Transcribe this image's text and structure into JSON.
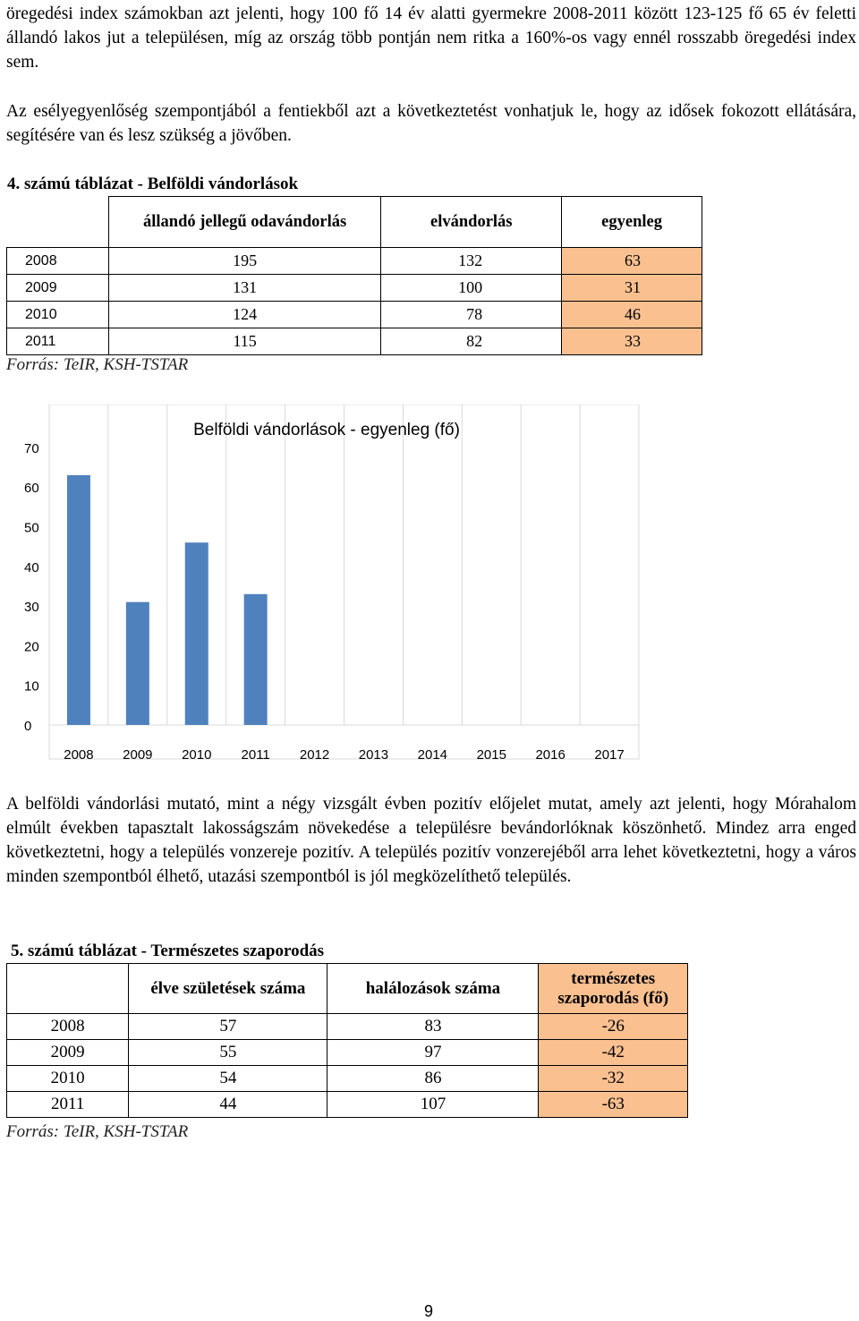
{
  "paragraphs": {
    "p1": "öregedési index számokban azt jelenti, hogy 100 fő 14 év alatti gyermekre 2008-2011 között 123-125 fő 65 év feletti állandó lakos jut a településen, míg az ország több pontján nem ritka a 160%-os vagy ennél rosszabb öregedési index sem.",
    "p2": "Az esélyegyenlőség szempontjából a fentiekből azt a következtetést vonhatjuk le, hogy az idősek fokozott ellátására, segítésére van és lesz szükség a jövőben.",
    "p3": "A belföldi vándorlási mutató, mint a négy vizsgált évben pozitív előjelet mutat, amely azt jelenti, hogy Mórahalom elmúlt években tapasztalt lakosságszám növekedése a településre bevándorlóknak köszönhető. Mindez arra enged következtetni, hogy a település vonzereje pozitív. A település pozitív vonzerejéből arra lehet következtetni, hogy a város minden szempontból élhető, utazási szempontból is jól megközelíthető település."
  },
  "table4": {
    "caption": "4. számú táblázat - Belföldi vándorlások",
    "headers": [
      "állandó jellegű odavándorlás",
      "elvándorlás",
      "egyenleg"
    ],
    "rows": [
      {
        "year": "2008",
        "in": "195",
        "out": "132",
        "balance": "63"
      },
      {
        "year": "2009",
        "in": "131",
        "out": "100",
        "balance": "31"
      },
      {
        "year": "2010",
        "in": "124",
        "out": "78",
        "balance": "46"
      },
      {
        "year": "2011",
        "in": "115",
        "out": "82",
        "balance": "33"
      }
    ],
    "source": "Forrás: TeIR, KSH-TSTAR"
  },
  "chart_data": {
    "type": "bar",
    "title": "Belföldi vándorlások - egyenleg (fő)",
    "categories": [
      "2008",
      "2009",
      "2010",
      "2011",
      "2012",
      "2013",
      "2014",
      "2015",
      "2016",
      "2017"
    ],
    "values": [
      63,
      31,
      46,
      33,
      null,
      null,
      null,
      null,
      null,
      null
    ],
    "ylim": [
      0,
      70
    ],
    "yticks": [
      "0",
      "10",
      "20",
      "30",
      "40",
      "50",
      "60",
      "70"
    ],
    "xlabel": "",
    "ylabel": "",
    "bar_color": "#4f81bd",
    "grid": true,
    "legend": "none"
  },
  "table5": {
    "caption": "5. számú táblázat - Természetes szaporodás",
    "headers": [
      "élve születések száma",
      "halálozások száma",
      "természetes szaporodás (fő)"
    ],
    "rows": [
      {
        "year": "2008",
        "births": "57",
        "deaths": "83",
        "natural": "-26"
      },
      {
        "year": "2009",
        "births": "55",
        "deaths": "97",
        "natural": "-42"
      },
      {
        "year": "2010",
        "births": "54",
        "deaths": "86",
        "natural": "-32"
      },
      {
        "year": "2011",
        "births": "44",
        "deaths": "107",
        "natural": "-63"
      }
    ],
    "source": "Forrás: TeIR, KSH-TSTAR"
  },
  "page_number": "9"
}
